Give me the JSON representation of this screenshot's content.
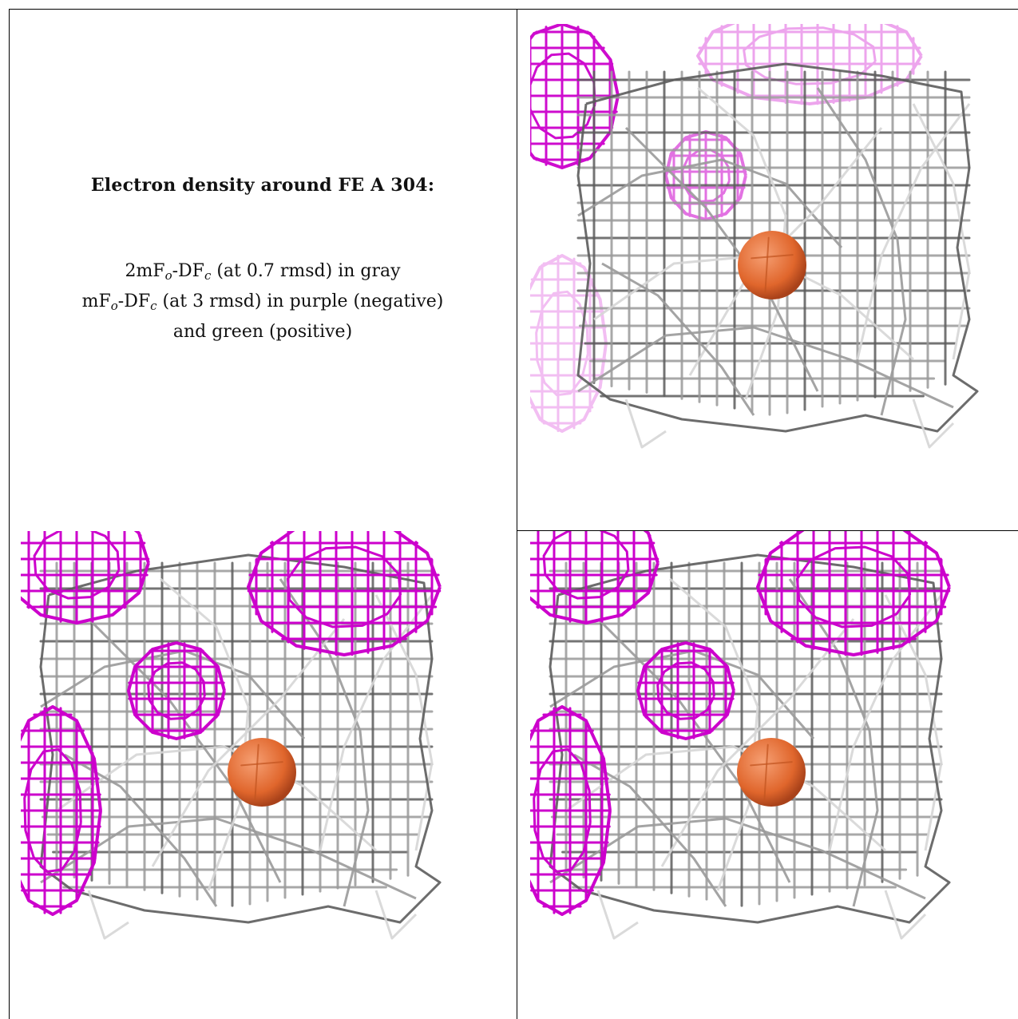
{
  "caption": {
    "title": "Electron density around FE A 304:",
    "line1": {
      "prefix": "2mF",
      "sub_o": "o",
      "mid": "-DF",
      "sub_c": "c",
      "suffix": " (at 0.7 rmsd) in gray"
    },
    "line2": {
      "prefix": "mF",
      "sub_o": "o",
      "mid": "-DF",
      "sub_c": "c",
      "suffix": " (at 3 rmsd) in purple (negative)"
    },
    "line3": "and green (positive)"
  },
  "colors": {
    "gray_mesh": "#9a9a9a",
    "dark_mesh": "#5c5c5c",
    "light_mesh": "#d6d6d6",
    "negative_mesh": "#cc00cc",
    "atom": "#e0662c",
    "atom_highlight": "#f6a074"
  },
  "panels": [
    {
      "name": "view-1",
      "atom": "FE"
    },
    {
      "name": "view-2",
      "atom": "FE"
    },
    {
      "name": "view-3",
      "atom": "FE"
    }
  ]
}
